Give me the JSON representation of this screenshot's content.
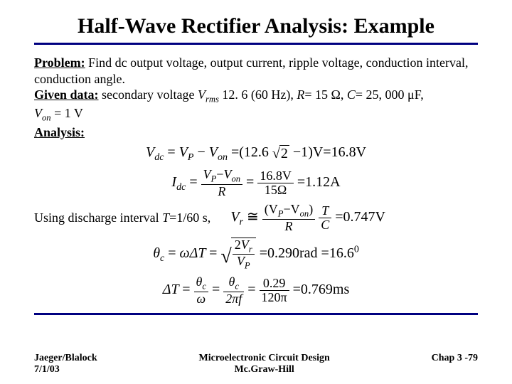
{
  "title": "Half-Wave Rectifier Analysis: Example",
  "problem": {
    "label": "Problem:",
    "text": " Find dc output voltage, output current, ripple voltage, conduction interval, conduction angle."
  },
  "given": {
    "label": "Given data:",
    "text_a": " secondary voltage ",
    "vrms_sym": "V",
    "vrms_sub": "rms",
    "vrms_val": " 12. 6 (60 Hz), ",
    "r_sym": "R",
    "r_val": "= 15 Ω, ",
    "c_sym": "C",
    "c_val": "= 25, 000 μF, ",
    "von_sym": "V",
    "von_sub": "on",
    "von_val": " = 1 V"
  },
  "analysis_label": "Analysis:",
  "eq_vdc": {
    "lhs": "V",
    "lhs_sub": "dc",
    "vp": "V",
    "vp_sub": "P",
    "von": "V",
    "von_sub": "on",
    "num": "12.6",
    "sqrt2": "2",
    "minus1": "−1",
    "result": "16.8",
    "unit": "V"
  },
  "eq_idc": {
    "lhs": "I",
    "lhs_sub": "dc",
    "num_a": "V",
    "num_a_sub": "P",
    "num_b": "V",
    "num_b_sub": "on",
    "den": "R",
    "val_num": "16.8V",
    "val_den": "15Ω",
    "result": "1.12",
    "unit": "A"
  },
  "discharge": {
    "text_a": "Using discharge interval ",
    "T_sym": "T",
    "T_val": "=1/60 s,"
  },
  "eq_vr": {
    "lhs": "V",
    "lhs_sub": "r",
    "approx": "≅",
    "num_a": "(V",
    "num_a_sub": "P",
    "num_mid": "−V",
    "num_b_sub": "on",
    "num_close": ")",
    "den": "R",
    "T": "T",
    "C": "C",
    "result": "0.747",
    "unit": "V"
  },
  "eq_theta": {
    "theta": "θ",
    "theta_sub": "c",
    "omega": "ω",
    "dT": "ΔT",
    "two": "2",
    "Vr": "V",
    "Vr_sub": "r",
    "Vp": "V",
    "Vp_sub": "P",
    "rad_val": "0.290",
    "rad_unit": "rad",
    "deg_val": "16.6",
    "deg_unit": "0"
  },
  "eq_dt": {
    "dT": "ΔT",
    "theta": "θ",
    "theta_sub": "c",
    "omega": "ω",
    "twopi": "2πf",
    "num_val": "0.29",
    "den_val": "120π",
    "result": "0.769",
    "unit": "ms"
  },
  "footer": {
    "left1": "Jaeger/Blalock",
    "left2": "7/1/03",
    "center1": "Microelectronic Circuit Design",
    "center2": "Mc.Graw-Hill",
    "right": "Chap 3 -79"
  },
  "colors": {
    "rule": "#000080",
    "text": "#000000",
    "bg": "#ffffff"
  }
}
